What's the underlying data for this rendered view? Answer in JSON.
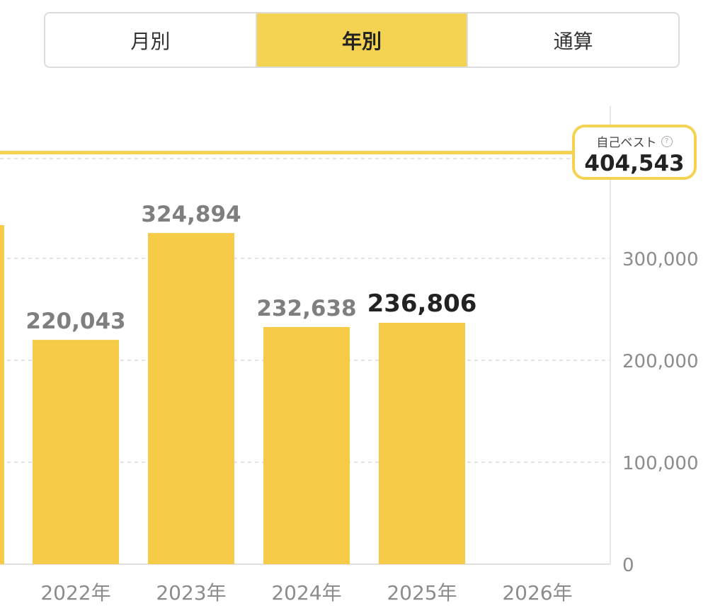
{
  "tabs": [
    {
      "label": "月別",
      "active": false
    },
    {
      "label": "年別",
      "active": true
    },
    {
      "label": "通算",
      "active": false
    }
  ],
  "best": {
    "label": "自己ベスト",
    "value": "404,543",
    "help_icon": "question-circle-icon"
  },
  "colors": {
    "accent": "#f5d352",
    "bar": "#f5cb47",
    "label_dim": "#7f7f7f",
    "label_current": "#222222",
    "grid": "#e3e3e3",
    "axis_text": "#8c8c8c"
  },
  "chart_data": {
    "type": "bar",
    "categories": [
      "2022年",
      "2023年",
      "2024年",
      "2025年",
      "2026年"
    ],
    "values": [
      220043,
      324894,
      232638,
      236806,
      null
    ],
    "value_labels": [
      "220,043",
      "324,894",
      "232,638",
      "236,806",
      ""
    ],
    "current_index": 3,
    "yticks": [
      0,
      100000,
      200000,
      300000
    ],
    "ytick_labels": [
      "0",
      "100,000",
      "200,000",
      "300,000"
    ],
    "ylim": [
      0,
      450000
    ],
    "best_line": 404543,
    "axis_position": "right",
    "grid": true,
    "title": "",
    "xlabel": "",
    "ylabel": ""
  }
}
